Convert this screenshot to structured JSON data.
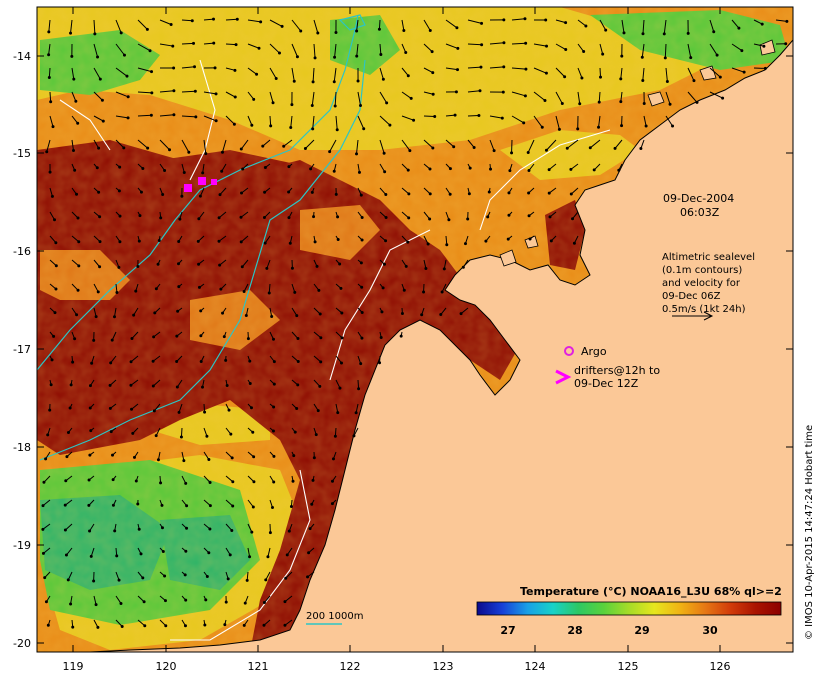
{
  "date": "09-Dec-2004",
  "time": "06:03Z",
  "legend": {
    "altimetry_lines": [
      "Altimetric sealevel",
      "(0.1m contours)",
      "and velocity for",
      "09-Dec 06Z",
      "0.5m/s (1kt 24h)"
    ],
    "argo_label": "Argo",
    "drifter_lines": [
      "drifters@12h to",
      "09-Dec 12Z"
    ],
    "isobath_label": "200  1000m"
  },
  "colorbar": {
    "title": "Temperature (°C) NOAA16_L3U 68% ql>=2",
    "ticks": [
      "27",
      "28",
      "29",
      "30"
    ],
    "colors": [
      "#0a0a8c",
      "#1640d8",
      "#19a0e6",
      "#19d2c8",
      "#2cc864",
      "#5ad23c",
      "#a6dc28",
      "#e6e61e",
      "#f0b414",
      "#e67814",
      "#d23c0a",
      "#aa1400",
      "#8c0000"
    ]
  },
  "credit": "© IMOS 10-Apr-2015 14:47:24 Hobart time",
  "axes": {
    "x_ticks": [
      "119",
      "120",
      "121",
      "122",
      "123",
      "124",
      "125",
      "126"
    ],
    "y_ticks": [
      "-14",
      "-15",
      "-16",
      "-17",
      "-18",
      "-19",
      "-20"
    ]
  },
  "colors": {
    "land": "#fbc897",
    "isobath": "#2cc5c5",
    "contour": "#ffffff",
    "argo": "#e020e0",
    "drifter": "#ff00ff",
    "warm_sst": "#8c0000",
    "mid_sst": "#e67814",
    "cool_sst": "#2cc864"
  }
}
